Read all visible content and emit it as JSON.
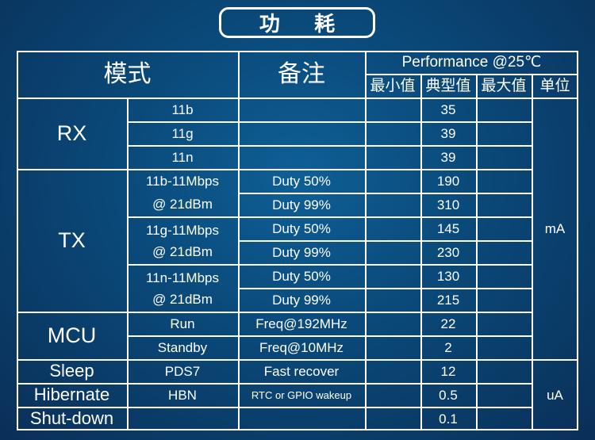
{
  "title": "功 耗",
  "header": {
    "mode": "模式",
    "note": "备注",
    "performance": "Performance @25℃",
    "min": "最小值",
    "typ": "典型值",
    "max": "最大值",
    "unit": "单位"
  },
  "groups": {
    "rx": "RX",
    "tx": "TX",
    "mcu": "MCU",
    "sleep": "Sleep",
    "hibernate": "Hibernate",
    "shutdown": "Shut-down"
  },
  "rows": {
    "rx_11b": {
      "sub": "11b",
      "typ": "35"
    },
    "rx_11g": {
      "sub": "11g",
      "typ": "39"
    },
    "rx_11n": {
      "sub": "11n",
      "typ": "39"
    },
    "tx_b": {
      "sub1": "11b-11Mbps",
      "sub2": "@ 21dBm",
      "note1": "Duty 50%",
      "note2": "Duty 99%",
      "typ1": "190",
      "typ2": "310"
    },
    "tx_g": {
      "sub1": "11g-11Mbps",
      "sub2": "@ 21dBm",
      "note1": "Duty 50%",
      "note2": "Duty 99%",
      "typ1": "145",
      "typ2": "230"
    },
    "tx_n": {
      "sub1": "11n-11Mbps",
      "sub2": "@ 21dBm",
      "note1": "Duty 50%",
      "note2": "Duty 99%",
      "typ1": "130",
      "typ2": "215"
    },
    "mcu_run": {
      "sub": "Run",
      "note": "Freq@192MHz",
      "typ": "22"
    },
    "mcu_standby": {
      "sub": "Standby",
      "note": "Freq@10MHz",
      "typ": "2"
    },
    "sleep": {
      "sub": "PDS7",
      "note": "Fast recover",
      "typ": "12"
    },
    "hibernate": {
      "sub": "HBN",
      "note": "RTC or GPIO wakeup",
      "typ": "0.5"
    },
    "shutdown": {
      "typ": "0.1"
    }
  },
  "units": {
    "ma": "mA",
    "ua": "uA"
  }
}
